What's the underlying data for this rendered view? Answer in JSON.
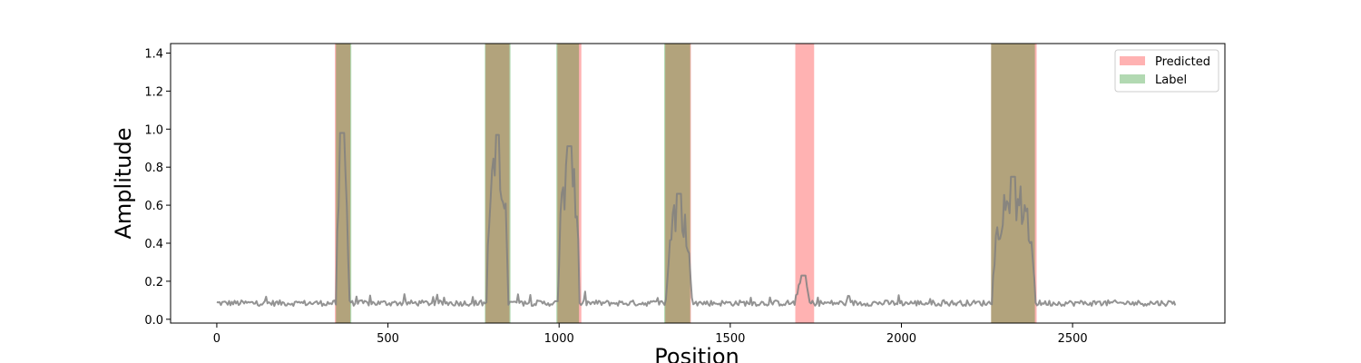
{
  "chart_data": {
    "type": "line",
    "title": "",
    "xlabel": "Position",
    "ylabel": "Amplitude",
    "xlim": [
      -135,
      2945
    ],
    "ylim": [
      -0.02,
      1.45
    ],
    "xticks": [
      0,
      500,
      1000,
      1500,
      2000,
      2500
    ],
    "yticks": [
      0.0,
      0.2,
      0.4,
      0.6,
      0.8,
      1.0,
      1.2,
      1.4
    ],
    "grid": false,
    "legend_position": "top-right",
    "colors": {
      "predicted": "#ff0000",
      "label": "#008000",
      "signal": "#808080"
    },
    "legend": [
      {
        "label": "Predicted",
        "series": "predicted"
      },
      {
        "label": "Label",
        "series": "label"
      }
    ],
    "predicted_regions": [
      [
        345,
        390
      ],
      [
        785,
        855
      ],
      [
        995,
        1065
      ],
      [
        1310,
        1385
      ],
      [
        1690,
        1745
      ],
      [
        2262,
        2395
      ]
    ],
    "label_regions": [
      [
        348,
        393
      ],
      [
        783,
        858
      ],
      [
        992,
        1058
      ],
      [
        1307,
        1383
      ],
      [
        2262,
        2390
      ]
    ],
    "signal_peaks": [
      {
        "start": 350,
        "end": 385,
        "peak": 0.98
      },
      {
        "start": 790,
        "end": 850,
        "peak": 0.97
      },
      {
        "start": 998,
        "end": 1060,
        "peak": 0.91
      },
      {
        "start": 1315,
        "end": 1385,
        "peak": 0.66
      },
      {
        "start": 1695,
        "end": 1730,
        "peak": 0.23
      },
      {
        "start": 2265,
        "end": 2390,
        "peak": 0.75
      }
    ],
    "baseline": 0.085,
    "x_range": [
      0,
      2800
    ]
  }
}
